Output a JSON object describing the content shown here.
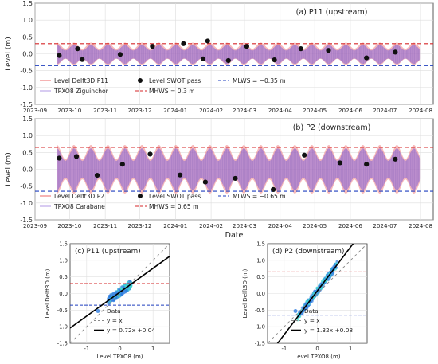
{
  "chart_data": [
    {
      "type": "line",
      "panel_title": "(a) P11 (upstream)",
      "xlabel": "",
      "ylabel": "Level (m)",
      "x_ticks": [
        "2023-09",
        "2023-10",
        "2023-11",
        "2023-12",
        "2024-01",
        "2024-02",
        "2024-03",
        "2024-04",
        "2024-05",
        "2024-06",
        "2024-07",
        "2024-08"
      ],
      "y_ticks": [
        "-1.5",
        "-1.0",
        "-0.5",
        "0.0",
        "0.5",
        "1.0",
        "1.5"
      ],
      "ylim": [
        -1.5,
        1.5
      ],
      "xlim": [
        "2023-09-01",
        "2024-08-12"
      ],
      "series": [
        {
          "name": "Level Delft3D P11",
          "color": "#f08080",
          "start": "2023-09-20",
          "end": "2024-08-01",
          "mean": 0.0,
          "amp_spring": 0.33,
          "amp_neap": 0.15
        },
        {
          "name": "TPXO8 Ziguinchor",
          "color": "#9370db",
          "start": "2023-09-20",
          "end": "2024-08-01",
          "mean": -0.02,
          "amp_spring": 0.28,
          "amp_neap": 0.12
        }
      ],
      "swot": {
        "name": "Level SWOT pass",
        "points": [
          {
            "date": "2023-09-22",
            "level": -0.05
          },
          {
            "date": "2023-10-08",
            "level": 0.15
          },
          {
            "date": "2023-10-12",
            "level": -0.17
          },
          {
            "date": "2023-11-14",
            "level": -0.02
          },
          {
            "date": "2023-12-12",
            "level": 0.22
          },
          {
            "date": "2024-01-08",
            "level": 0.3
          },
          {
            "date": "2024-01-25",
            "level": -0.15
          },
          {
            "date": "2024-01-29",
            "level": 0.38
          },
          {
            "date": "2024-02-16",
            "level": -0.2
          },
          {
            "date": "2024-03-03",
            "level": 0.22
          },
          {
            "date": "2024-03-27",
            "level": -0.18
          },
          {
            "date": "2024-04-19",
            "level": 0.15
          },
          {
            "date": "2024-05-13",
            "level": 0.1
          },
          {
            "date": "2024-06-15",
            "level": -0.12
          },
          {
            "date": "2024-07-10",
            "level": 0.05
          }
        ]
      },
      "mhws": {
        "name": "MHWS = 0.3 m",
        "value": 0.3,
        "color": "#d62728"
      },
      "mlws": {
        "name": "MLWS = −0.35 m",
        "value": -0.35,
        "color": "#1f3fbf"
      }
    },
    {
      "type": "line",
      "panel_title": "(b) P2 (downstream)",
      "xlabel": "Date",
      "ylabel": "Level (m)",
      "x_ticks": [
        "2023-09",
        "2023-10",
        "2023-11",
        "2023-12",
        "2024-01",
        "2024-02",
        "2024-03",
        "2024-04",
        "2024-05",
        "2024-06",
        "2024-07",
        "2024-08"
      ],
      "y_ticks": [
        "-1.5",
        "-1.0",
        "-0.5",
        "0.0",
        "0.5",
        "1.0",
        "1.5"
      ],
      "ylim": [
        -1.5,
        1.5
      ],
      "xlim": [
        "2023-09-01",
        "2024-08-12"
      ],
      "series": [
        {
          "name": "Level Delft3D P2",
          "color": "#f08080",
          "start": "2023-09-20",
          "end": "2024-08-01",
          "mean": 0.0,
          "amp_spring": 0.72,
          "amp_neap": 0.3
        },
        {
          "name": "TPXO8 Carabane",
          "color": "#9370db",
          "start": "2023-09-20",
          "end": "2024-08-01",
          "mean": 0.0,
          "amp_spring": 0.62,
          "amp_neap": 0.25
        }
      ],
      "swot": {
        "name": "Level SWOT pass",
        "points": [
          {
            "date": "2023-09-22",
            "level": 0.33
          },
          {
            "date": "2023-10-07",
            "level": 0.38
          },
          {
            "date": "2023-10-25",
            "level": -0.18
          },
          {
            "date": "2023-11-16",
            "level": 0.15
          },
          {
            "date": "2023-12-10",
            "level": 0.45
          },
          {
            "date": "2024-01-05",
            "level": -0.17
          },
          {
            "date": "2024-01-27",
            "level": -0.38
          },
          {
            "date": "2024-02-22",
            "level": -0.27
          },
          {
            "date": "2024-03-26",
            "level": -0.6
          },
          {
            "date": "2024-04-22",
            "level": 0.42
          },
          {
            "date": "2024-05-23",
            "level": 0.19
          },
          {
            "date": "2024-06-15",
            "level": 0.15
          },
          {
            "date": "2024-07-10",
            "level": 0.3
          }
        ]
      },
      "mhws": {
        "name": "MHWS = 0.65 m",
        "value": 0.65,
        "color": "#d62728"
      },
      "mlws": {
        "name": "MLWS = −0.65 m",
        "value": -0.65,
        "color": "#1f3fbf"
      }
    },
    {
      "type": "scatter",
      "panel_title": "(c) P11 (upstream)",
      "xlabel": "Level TPXO8 (m)",
      "ylabel": "Level Delft3D (m)",
      "xlim": [
        -1.5,
        1.5
      ],
      "ylim": [
        -1.5,
        1.5
      ],
      "x_ticks": [
        "-1",
        "0",
        "1"
      ],
      "y_ticks": [
        "-1.5",
        "-1.0",
        "-0.5",
        "0.0",
        "0.5",
        "1.0",
        "1.5"
      ],
      "data_cloud": {
        "name": "Data",
        "x_range": [
          -0.35,
          0.35
        ],
        "fit_slope": 0.72,
        "fit_intercept": 0.04,
        "spread": 0.12
      },
      "identity": {
        "name": "y = x"
      },
      "fit": {
        "name": "y = 0.72x +0.04",
        "slope": 0.72,
        "intercept": 0.04
      },
      "mhws": {
        "value": 0.3,
        "color": "#d62728"
      },
      "mlws": {
        "value": -0.35,
        "color": "#1f3fbf"
      }
    },
    {
      "type": "scatter",
      "panel_title": "(d) P2 (downstream)",
      "xlabel": "Level TPXO8 (m)",
      "ylabel": "Level Delft3D (m)",
      "xlim": [
        -1.5,
        1.5
      ],
      "ylim": [
        -1.5,
        1.5
      ],
      "x_ticks": [
        "-1",
        "0",
        "1"
      ],
      "y_ticks": [
        "-1.5",
        "-1.0",
        "-0.5",
        "0.0",
        "0.5",
        "1.0",
        "1.5"
      ],
      "data_cloud": {
        "name": "Data",
        "x_range": [
          -0.6,
          0.6
        ],
        "fit_slope": 1.32,
        "fit_intercept": 0.08,
        "spread": 0.1
      },
      "identity": {
        "name": "y = x"
      },
      "fit": {
        "name": "y = 1.32x +0.08",
        "slope": 1.32,
        "intercept": 0.08
      },
      "mhws": {
        "value": 0.65,
        "color": "#d62728"
      },
      "mlws": {
        "value": -0.65,
        "color": "#1f3fbf"
      }
    }
  ]
}
